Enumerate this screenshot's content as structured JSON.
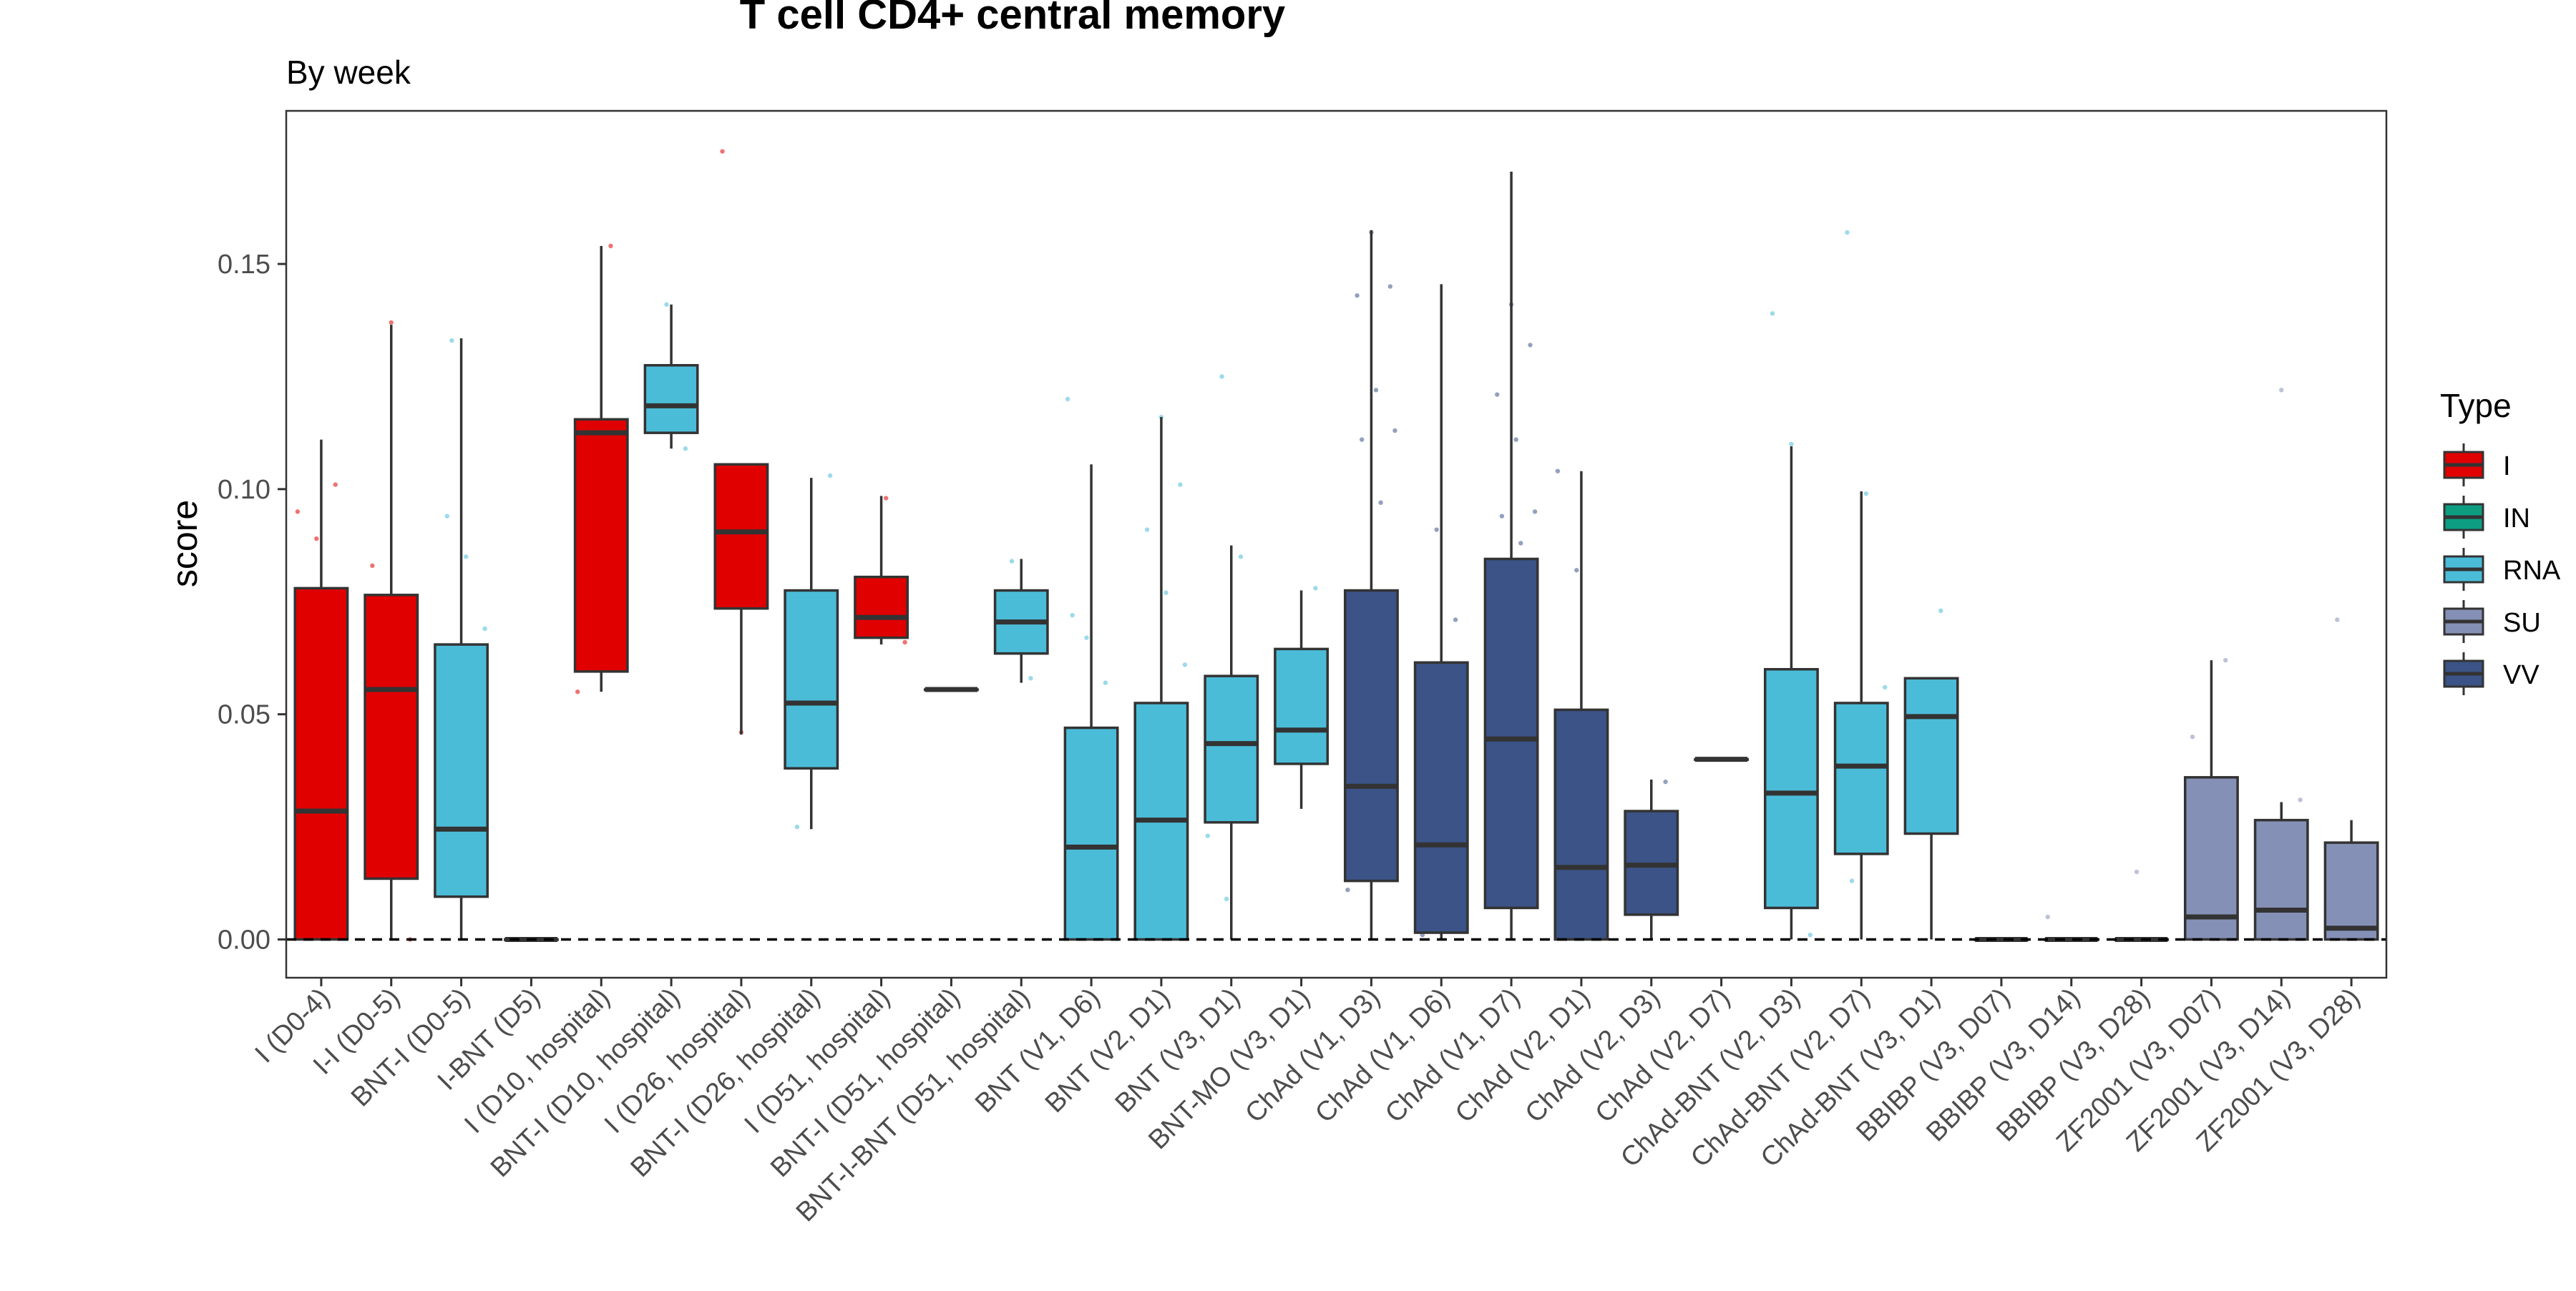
{
  "chart_data": {
    "type": "box",
    "title": "T cell CD4+ central memory",
    "subtitle": "By week",
    "xlabel": "",
    "ylabel": "score",
    "ylim": [
      -0.0085,
      0.184
    ],
    "yticks": [
      0.0,
      0.05,
      0.1,
      0.15
    ],
    "ytick_labels": [
      "0.00",
      "0.05",
      "0.10",
      "0.15"
    ],
    "reference_line": 0,
    "legend": {
      "title": "Type",
      "position": "right",
      "entries": [
        {
          "name": "I",
          "color": "#e00000"
        },
        {
          "name": "IN",
          "color": "#0d9e82"
        },
        {
          "name": "RNA",
          "color": "#4bbcd8"
        },
        {
          "name": "SU",
          "color": "#8590b6"
        },
        {
          "name": "VV",
          "color": "#3b5386"
        }
      ]
    },
    "categories": [
      "I (D0-4)",
      "I-I (D0-5)",
      "BNT-I (D0-5)",
      "I-BNT (D5)",
      "I (D10, hospital)",
      "BNT-I (D10, hospital)",
      "I (D26, hospital)",
      "BNT-I (D26, hospital)",
      "I (D51, hospital)",
      "BNT-I (D51, hospital)",
      "BNT-I-BNT (D51, hospital)",
      "BNT (V1, D6)",
      "BNT (V2, D1)",
      "BNT (V3, D1)",
      "BNT-MO (V3, D1)",
      "ChAd (V1, D3)",
      "ChAd (V1, D6)",
      "ChAd (V1, D7)",
      "ChAd (V2, D1)",
      "ChAd (V2, D3)",
      "ChAd (V2, D7)",
      "ChAd-BNT (V2, D3)",
      "ChAd-BNT (V2, D7)",
      "ChAd-BNT (V3, D1)",
      "BBIBP (V3, D07)",
      "BBIBP (V3, D14)",
      "BBIBP (V3, D28)",
      "ZF2001 (V3, D07)",
      "ZF2001 (V3, D14)",
      "ZF2001 (V3, D28)"
    ],
    "boxes": [
      {
        "type": "I",
        "min": 0.0,
        "q1": 0.0,
        "median": 0.0285,
        "q3": 0.078,
        "max": 0.111
      },
      {
        "type": "I",
        "min": 0.0,
        "q1": 0.0135,
        "median": 0.0555,
        "q3": 0.0765,
        "max": 0.1365
      },
      {
        "type": "RNA",
        "min": 0.0,
        "q1": 0.0095,
        "median": 0.0245,
        "q3": 0.0655,
        "max": 0.1335
      },
      {
        "type": "I",
        "min": 0.0,
        "q1": 0.0,
        "median": 0.0,
        "q3": 0.0,
        "max": 0.0
      },
      {
        "type": "I",
        "min": 0.055,
        "q1": 0.0595,
        "median": 0.1125,
        "q3": 0.1155,
        "max": 0.154
      },
      {
        "type": "RNA",
        "min": 0.109,
        "q1": 0.1125,
        "median": 0.1185,
        "q3": 0.1275,
        "max": 0.141
      },
      {
        "type": "I",
        "min": 0.0455,
        "q1": 0.0735,
        "median": 0.0905,
        "q3": 0.1055,
        "max": 0.1055
      },
      {
        "type": "RNA",
        "min": 0.0245,
        "q1": 0.038,
        "median": 0.0525,
        "q3": 0.0775,
        "max": 0.1025
      },
      {
        "type": "I",
        "min": 0.0655,
        "q1": 0.067,
        "median": 0.0715,
        "q3": 0.0805,
        "max": 0.0985
      },
      {
        "type": "RNA",
        "min": 0.0555,
        "q1": 0.0555,
        "median": 0.0555,
        "q3": 0.0555,
        "max": 0.0555
      },
      {
        "type": "RNA",
        "min": 0.057,
        "q1": 0.0635,
        "median": 0.0705,
        "q3": 0.0775,
        "max": 0.0845
      },
      {
        "type": "RNA",
        "min": 0.0,
        "q1": 0.0,
        "median": 0.0205,
        "q3": 0.047,
        "max": 0.1055
      },
      {
        "type": "RNA",
        "min": 0.0,
        "q1": 0.0,
        "median": 0.0265,
        "q3": 0.0525,
        "max": 0.116
      },
      {
        "type": "RNA",
        "min": 0.0,
        "q1": 0.026,
        "median": 0.0435,
        "q3": 0.0585,
        "max": 0.0875
      },
      {
        "type": "RNA",
        "min": 0.029,
        "q1": 0.039,
        "median": 0.0465,
        "q3": 0.0645,
        "max": 0.0775
      },
      {
        "type": "VV",
        "min": 0.0,
        "q1": 0.013,
        "median": 0.034,
        "q3": 0.0775,
        "max": 0.1575
      },
      {
        "type": "VV",
        "min": 0.0,
        "q1": 0.0015,
        "median": 0.021,
        "q3": 0.0615,
        "max": 0.1455
      },
      {
        "type": "VV",
        "min": 0.0,
        "q1": 0.007,
        "median": 0.0445,
        "q3": 0.0845,
        "max": 0.1705
      },
      {
        "type": "VV",
        "min": 0.0,
        "q1": 0.0,
        "median": 0.016,
        "q3": 0.051,
        "max": 0.104
      },
      {
        "type": "VV",
        "min": 0.0,
        "q1": 0.0055,
        "median": 0.0165,
        "q3": 0.0285,
        "max": 0.0355
      },
      {
        "type": "VV",
        "min": 0.04,
        "q1": 0.04,
        "median": 0.04,
        "q3": 0.04,
        "max": 0.04
      },
      {
        "type": "RNA",
        "min": 0.0,
        "q1": 0.007,
        "median": 0.0325,
        "q3": 0.06,
        "max": 0.1095
      },
      {
        "type": "RNA",
        "min": 0.0,
        "q1": 0.019,
        "median": 0.0385,
        "q3": 0.0525,
        "max": 0.0995
      },
      {
        "type": "RNA",
        "min": 0.0,
        "q1": 0.0235,
        "median": 0.0495,
        "q3": 0.058,
        "max": 0.058
      },
      {
        "type": "SU",
        "min": 0.0,
        "q1": 0.0,
        "median": 0.0,
        "q3": 0.0,
        "max": 0.0
      },
      {
        "type": "SU",
        "min": 0.0,
        "q1": 0.0,
        "median": 0.0,
        "q3": 0.0,
        "max": 0.0
      },
      {
        "type": "SU",
        "min": 0.0,
        "q1": 0.0,
        "median": 0.0,
        "q3": 0.0,
        "max": 0.0
      },
      {
        "type": "SU",
        "min": 0.0,
        "q1": 0.0,
        "median": 0.005,
        "q3": 0.036,
        "max": 0.062
      },
      {
        "type": "SU",
        "min": 0.0,
        "q1": 0.0,
        "median": 0.0065,
        "q3": 0.0265,
        "max": 0.0305
      },
      {
        "type": "SU",
        "min": 0.0,
        "q1": 0.0,
        "median": 0.0025,
        "q3": 0.0215,
        "max": 0.0265
      }
    ],
    "points": [
      {
        "c": 0,
        "y": 0.095
      },
      {
        "c": 0,
        "y": 0.089
      },
      {
        "c": 0,
        "y": 0.101
      },
      {
        "c": 1,
        "y": 0.083
      },
      {
        "c": 1,
        "y": 0.137
      },
      {
        "c": 1,
        "y": 0.0
      },
      {
        "c": 2,
        "y": 0.094
      },
      {
        "c": 2,
        "y": 0.085
      },
      {
        "c": 2,
        "y": 0.069
      },
      {
        "c": 2,
        "y": 0.133
      },
      {
        "c": 4,
        "y": 0.154
      },
      {
        "c": 4,
        "y": 0.055
      },
      {
        "c": 5,
        "y": 0.141
      },
      {
        "c": 5,
        "y": 0.109
      },
      {
        "c": 6,
        "y": 0.175
      },
      {
        "c": 6,
        "y": 0.046
      },
      {
        "c": 7,
        "y": 0.103
      },
      {
        "c": 7,
        "y": 0.025
      },
      {
        "c": 8,
        "y": 0.098
      },
      {
        "c": 8,
        "y": 0.066
      },
      {
        "c": 10,
        "y": 0.084
      },
      {
        "c": 10,
        "y": 0.058
      },
      {
        "c": 11,
        "y": 0.12
      },
      {
        "c": 11,
        "y": 0.067
      },
      {
        "c": 11,
        "y": 0.057
      },
      {
        "c": 11,
        "y": 0.072
      },
      {
        "c": 12,
        "y": 0.116
      },
      {
        "c": 12,
        "y": 0.101
      },
      {
        "c": 12,
        "y": 0.091
      },
      {
        "c": 12,
        "y": 0.077
      },
      {
        "c": 12,
        "y": 0.061
      },
      {
        "c": 13,
        "y": 0.125
      },
      {
        "c": 13,
        "y": 0.085
      },
      {
        "c": 13,
        "y": 0.023
      },
      {
        "c": 13,
        "y": 0.009
      },
      {
        "c": 14,
        "y": 0.078
      },
      {
        "c": 14,
        "y": 0.061
      },
      {
        "c": 15,
        "y": 0.157
      },
      {
        "c": 15,
        "y": 0.145
      },
      {
        "c": 15,
        "y": 0.143
      },
      {
        "c": 15,
        "y": 0.122
      },
      {
        "c": 15,
        "y": 0.113
      },
      {
        "c": 15,
        "y": 0.111
      },
      {
        "c": 15,
        "y": 0.097
      },
      {
        "c": 15,
        "y": 0.011
      },
      {
        "c": 16,
        "y": 0.091
      },
      {
        "c": 16,
        "y": 0.071
      },
      {
        "c": 16,
        "y": 0.001
      },
      {
        "c": 17,
        "y": 0.141
      },
      {
        "c": 17,
        "y": 0.132
      },
      {
        "c": 17,
        "y": 0.121
      },
      {
        "c": 17,
        "y": 0.111
      },
      {
        "c": 17,
        "y": 0.095
      },
      {
        "c": 17,
        "y": 0.094
      },
      {
        "c": 17,
        "y": 0.088
      },
      {
        "c": 18,
        "y": 0.104
      },
      {
        "c": 18,
        "y": 0.082
      },
      {
        "c": 19,
        "y": 0.035
      },
      {
        "c": 21,
        "y": 0.139
      },
      {
        "c": 21,
        "y": 0.11
      },
      {
        "c": 21,
        "y": 0.001
      },
      {
        "c": 22,
        "y": 0.157
      },
      {
        "c": 22,
        "y": 0.099
      },
      {
        "c": 22,
        "y": 0.056
      },
      {
        "c": 22,
        "y": 0.013
      },
      {
        "c": 23,
        "y": 0.073
      },
      {
        "c": 25,
        "y": 0.005
      },
      {
        "c": 26,
        "y": 0.015
      },
      {
        "c": 27,
        "y": 0.062
      },
      {
        "c": 27,
        "y": 0.045
      },
      {
        "c": 28,
        "y": 0.122
      },
      {
        "c": 28,
        "y": 0.031
      },
      {
        "c": 29,
        "y": 0.071
      }
    ]
  }
}
